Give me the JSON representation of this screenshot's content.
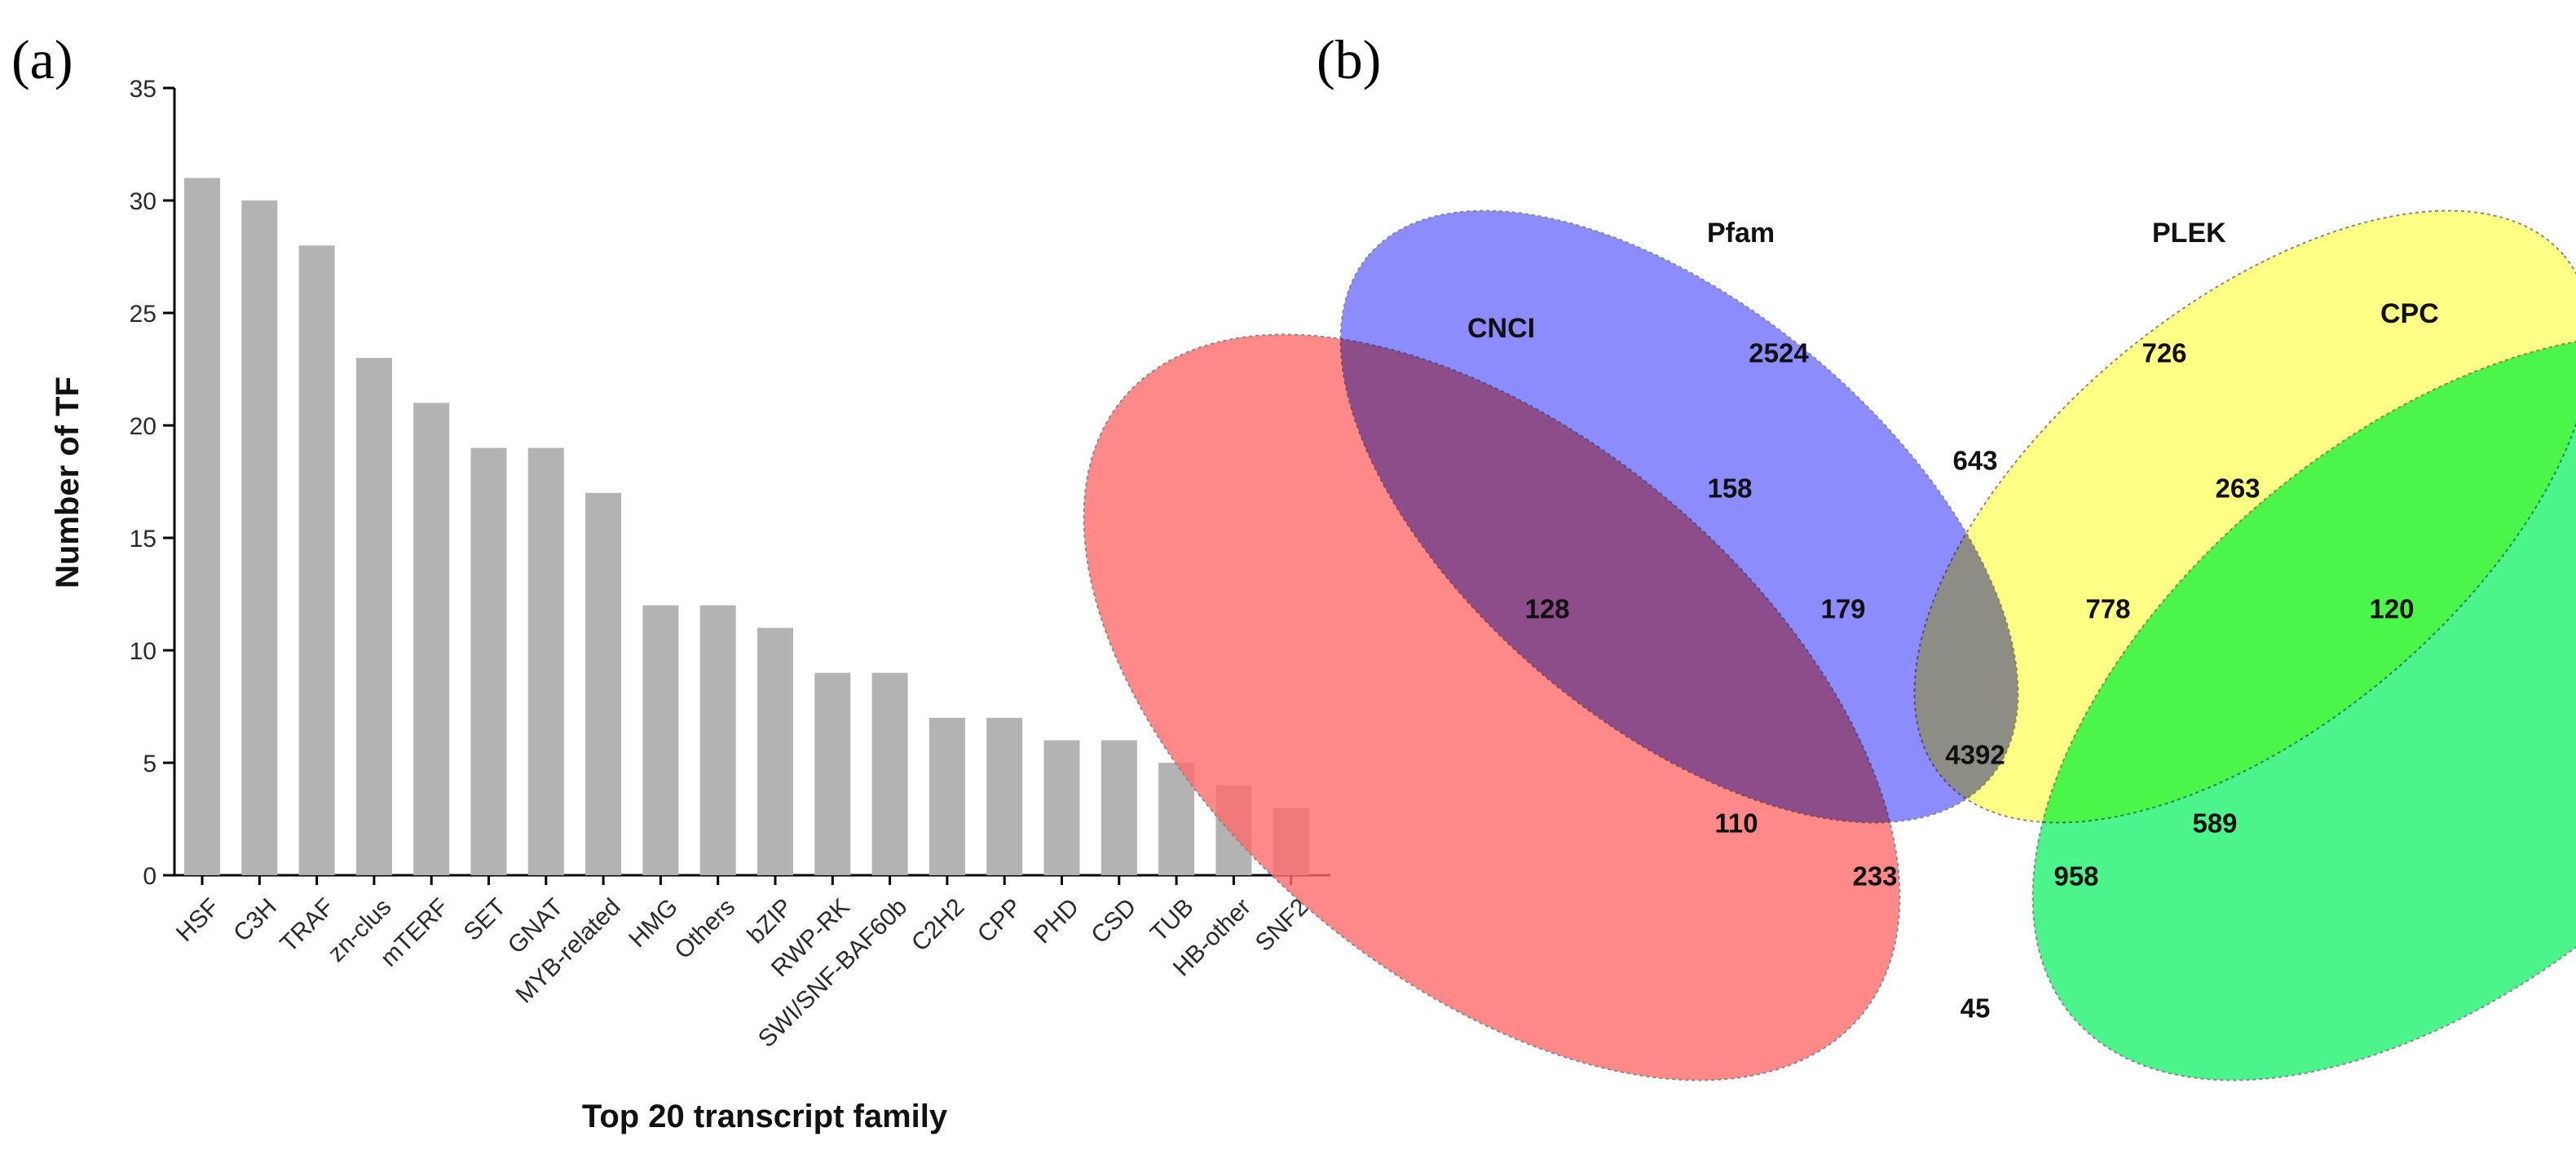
{
  "panels": {
    "a": "(a)",
    "b": "(b)"
  },
  "chart_data": [
    {
      "type": "bar",
      "title": "",
      "xlabel": "Top 20 transcript family",
      "ylabel": "Number of TF",
      "ylim": [
        0,
        35
      ],
      "yticks": [
        0,
        5,
        10,
        15,
        20,
        25,
        30,
        35
      ],
      "grid": false,
      "categories": [
        "HSF",
        "C3H",
        "TRAF",
        "zn-clus",
        "mTERF",
        "SET",
        "GNAT",
        "MYB-related",
        "HMG",
        "Others",
        "bZIP",
        "RWP-RK",
        "SWI/SNF-BAF60b",
        "C2H2",
        "CPP",
        "PHD",
        "CSD",
        "TUB",
        "HB-other",
        "SNF2"
      ],
      "values": [
        31,
        30,
        28,
        23,
        21,
        19,
        19,
        17,
        12,
        12,
        11,
        9,
        9,
        7,
        7,
        6,
        6,
        5,
        4,
        3
      ],
      "bar_color": "#b3b3b3"
    },
    {
      "type": "venn",
      "sets": [
        {
          "name": "CNCI",
          "color": "#ff6b6b"
        },
        {
          "name": "Pfam",
          "color": "#6f6fff"
        },
        {
          "name": "PLEK",
          "color": "#ffff66"
        },
        {
          "name": "CPC",
          "color": "#1ef26e"
        }
      ],
      "regions": [
        {
          "sets": [
            "CNCI"
          ],
          "value": 128
        },
        {
          "sets": [
            "Pfam"
          ],
          "value": 2524
        },
        {
          "sets": [
            "PLEK"
          ],
          "value": 726
        },
        {
          "sets": [
            "CPC"
          ],
          "value": 120
        },
        {
          "sets": [
            "CNCI",
            "Pfam"
          ],
          "value": 158
        },
        {
          "sets": [
            "Pfam",
            "PLEK"
          ],
          "value": 643
        },
        {
          "sets": [
            "PLEK",
            "CPC"
          ],
          "value": 263
        },
        {
          "sets": [
            "CNCI",
            "Pfam",
            "PLEK"
          ],
          "value": 179
        },
        {
          "sets": [
            "Pfam",
            "PLEK",
            "CPC"
          ],
          "value": 778
        },
        {
          "sets": [
            "CNCI",
            "Pfam",
            "PLEK",
            "CPC"
          ],
          "value": 4392
        },
        {
          "sets": [
            "CNCI",
            "PLEK"
          ],
          "value": 110
        },
        {
          "sets": [
            "CNCI",
            "PLEK",
            "CPC"
          ],
          "value": 233
        },
        {
          "sets": [
            "CNCI",
            "Pfam",
            "CPC"
          ],
          "value": 958
        },
        {
          "sets": [
            "Pfam",
            "CPC"
          ],
          "value": 589
        },
        {
          "sets": [
            "CNCI",
            "CPC"
          ],
          "value": 45
        }
      ]
    }
  ]
}
